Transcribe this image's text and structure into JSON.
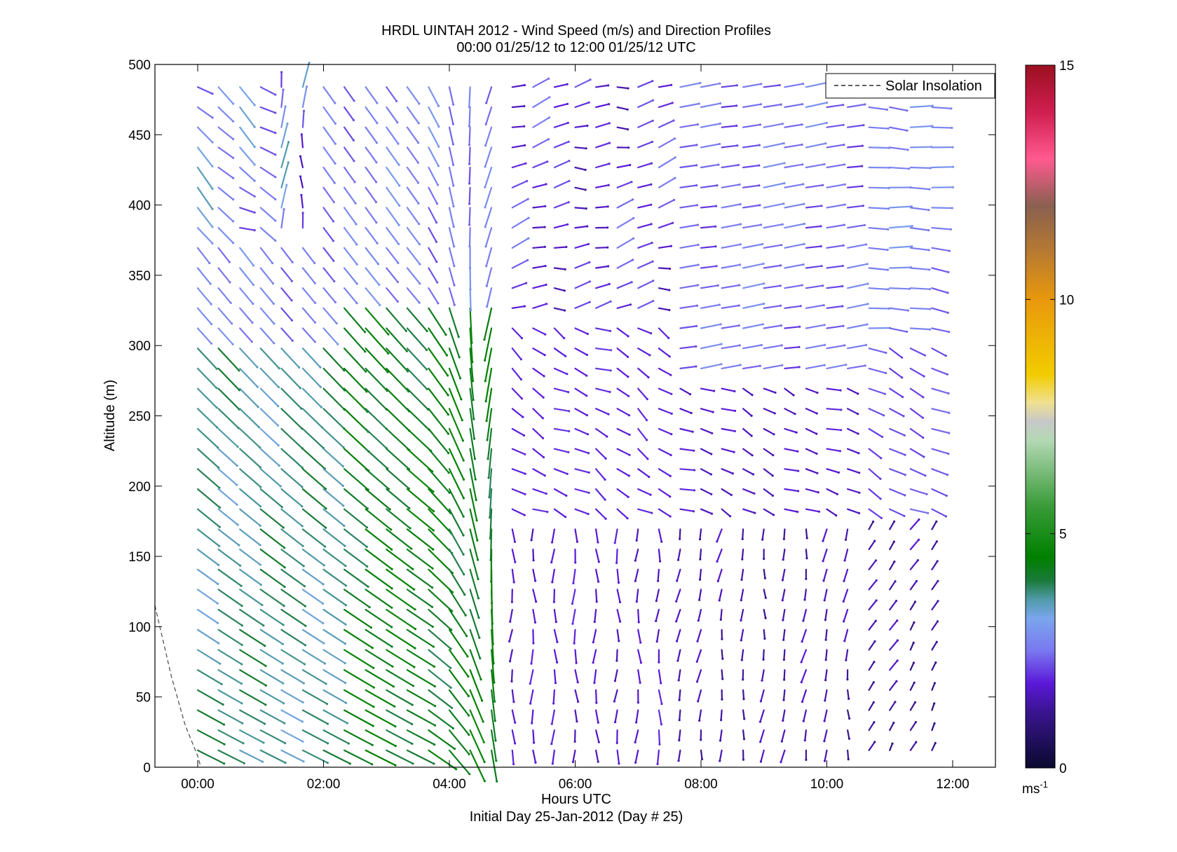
{
  "chart_data": {
    "type": "wind_barb_profile",
    "title": "HRDL UINTAH 2012 - Wind Speed (m/s) and Direction Profiles",
    "subtitle": "00:00 01/25/12 to 12:00 01/25/12  UTC",
    "xlabel": "Hours UTC",
    "xlabel2": "Initial Day 25-Jan-2012 (Day # 25)",
    "ylabel": "Altitude (m)",
    "xlim": [
      -0.68,
      12.68
    ],
    "ylim": [
      0,
      500
    ],
    "x_ticks": [
      {
        "value": 0,
        "label": "00:00"
      },
      {
        "value": 2,
        "label": "02:00"
      },
      {
        "value": 4,
        "label": "04:00"
      },
      {
        "value": 6,
        "label": "06:00"
      },
      {
        "value": 8,
        "label": "08:00"
      },
      {
        "value": 10,
        "label": "10:00"
      },
      {
        "value": 12,
        "label": "12:00"
      }
    ],
    "y_ticks": [
      {
        "value": 0,
        "label": "0"
      },
      {
        "value": 50,
        "label": "50"
      },
      {
        "value": 100,
        "label": "100"
      },
      {
        "value": 150,
        "label": "150"
      },
      {
        "value": 200,
        "label": "200"
      },
      {
        "value": 250,
        "label": "250"
      },
      {
        "value": 300,
        "label": "300"
      },
      {
        "value": 350,
        "label": "350"
      },
      {
        "value": 400,
        "label": "400"
      },
      {
        "value": 450,
        "label": "450"
      },
      {
        "value": 500,
        "label": "500"
      }
    ],
    "legend": {
      "entries": [
        "Solar Insolation"
      ],
      "location": "top-right",
      "line_style": "dashed"
    },
    "colorbar": {
      "range": [
        0,
        15
      ],
      "ticks": [
        {
          "value": 0,
          "label": "0"
        },
        {
          "value": 5,
          "label": "5"
        },
        {
          "value": 10,
          "label": "10"
        },
        {
          "value": 15,
          "label": "15"
        }
      ],
      "unit_label": "ms",
      "unit_exponent": "-1",
      "stops": [
        {
          "v": 0,
          "c": "#0a0a2e"
        },
        {
          "v": 1.2,
          "c": "#3a1490"
        },
        {
          "v": 1.8,
          "c": "#5a18d8"
        },
        {
          "v": 2.5,
          "c": "#7a78f0"
        },
        {
          "v": 3.2,
          "c": "#7aa6ec"
        },
        {
          "v": 3.6,
          "c": "#4f9aa8"
        },
        {
          "v": 4.0,
          "c": "#1a7a3a"
        },
        {
          "v": 4.5,
          "c": "#008000"
        },
        {
          "v": 5.6,
          "c": "#3a9c3a"
        },
        {
          "v": 7.0,
          "c": "#b4d8b4"
        },
        {
          "v": 7.4,
          "c": "#c8c8c8"
        },
        {
          "v": 7.8,
          "c": "#f0e090"
        },
        {
          "v": 8.4,
          "c": "#f2cc00"
        },
        {
          "v": 10.0,
          "c": "#e8980c"
        },
        {
          "v": 11.0,
          "c": "#b87a30"
        },
        {
          "v": 12.0,
          "c": "#8a6050"
        },
        {
          "v": 13.0,
          "c": "#ff5a90"
        },
        {
          "v": 14.0,
          "c": "#d01e50"
        },
        {
          "v": 15.0,
          "c": "#9a1020"
        }
      ]
    },
    "solar_insolation": {
      "x": [
        -0.68,
        -0.42,
        -0.2,
        0.0,
        0.05
      ],
      "y": [
        115,
        65,
        30,
        8,
        0
      ]
    },
    "series": [
      {
        "name": "wind vectors",
        "note": "u/v components derived from the regions of the plot",
        "times_hours": [
          0,
          0.33,
          0.67,
          1,
          1.33,
          1.67,
          2,
          2.33,
          2.67,
          3,
          3.33,
          3.67,
          4,
          4.33,
          4.67,
          5,
          5.33,
          5.67,
          6,
          6.33,
          6.67,
          7,
          7.33,
          7.67,
          8,
          8.33,
          8.67,
          9,
          9.33,
          9.67,
          10,
          10.33,
          10.67,
          11,
          11.33,
          11.67
        ],
        "altitude_step_m": 14.3,
        "altitude_min_m": 12,
        "altitude_max_m": 495
      }
    ]
  }
}
